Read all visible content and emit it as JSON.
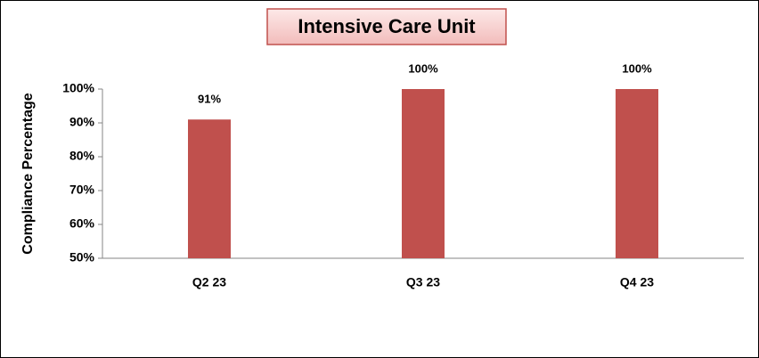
{
  "chart_data": {
    "type": "bar",
    "title": "Intensive Care Unit",
    "y_label": "Compliance Percentage",
    "categories": [
      "Q2 23",
      "Q3 23",
      "Q4 23"
    ],
    "values": [
      91,
      100,
      100
    ],
    "value_labels": [
      "91%",
      "100%",
      "100%"
    ],
    "color": "#c0504d",
    "ylim": [
      50,
      100
    ],
    "yticks": [
      {
        "value": 50,
        "label": "50%"
      },
      {
        "value": 60,
        "label": "60%"
      },
      {
        "value": 70,
        "label": "70%"
      },
      {
        "value": 80,
        "label": "80%"
      },
      {
        "value": 90,
        "label": "90%"
      },
      {
        "value": 100,
        "label": "100%"
      }
    ],
    "grid": false
  }
}
